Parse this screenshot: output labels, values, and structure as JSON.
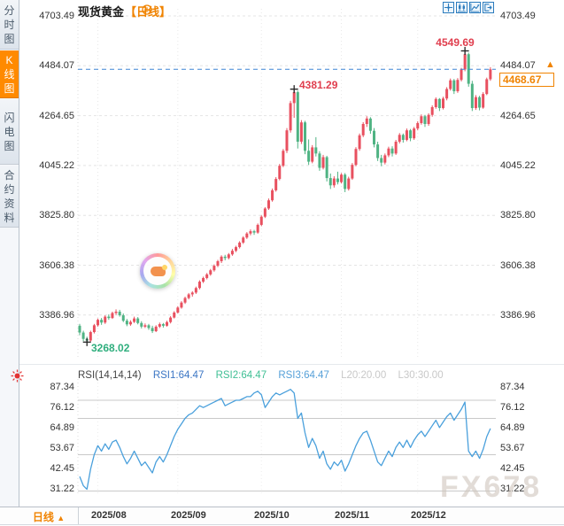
{
  "header": {
    "symbol": "现货黄金",
    "period_tag": "【日线】",
    "toolbar_icons": [
      "crosshair-icon",
      "kline-mode-icon",
      "trend-mode-icon",
      "exit-chart-icon"
    ]
  },
  "sidebar": {
    "tabs": [
      {
        "label": "分时图",
        "active": false
      },
      {
        "label": "K线图",
        "active": true
      },
      {
        "label": "闪电图",
        "active": false
      },
      {
        "label": "合约资料",
        "active": false
      }
    ]
  },
  "price_axis": {
    "labels": [
      "4703.49",
      "4484.07",
      "4264.65",
      "4045.22",
      "3825.80",
      "3606.38",
      "3386.96"
    ]
  },
  "annotations": {
    "high": "4549.69",
    "swing_high": "4381.29",
    "low": "3268.02"
  },
  "last_price": {
    "display": "4468.67",
    "marker": "▲"
  },
  "rsi_panel": {
    "title": "RSI(14,14,14)",
    "rsi1": "RSI1:64.47",
    "rsi2": "RSI2:64.47",
    "rsi3": "RSI3:64.47",
    "l20": "L20:20.00",
    "l30": "L30:30.00",
    "axis": [
      "87.34",
      "76.12",
      "64.89",
      "53.67",
      "42.45",
      "31.22"
    ]
  },
  "timeline": {
    "period": "日线",
    "arrow": "▲",
    "dates": [
      "2025/08",
      "2025/09",
      "2025/10",
      "2025/11",
      "2025/12"
    ]
  },
  "watermark": "FX678",
  "colors": {
    "up": "#e8505f",
    "down": "#4fb383",
    "accent_orange": "#f08300",
    "annotation_red": "#e03e4e",
    "annotation_green": "#2fae7d",
    "last_price_line": "#3f86d6",
    "rsi_line": "#4aa0dc",
    "grid": "#e4e4e4",
    "rsi_grid": "#c9c9c9",
    "icon_blue": "#2176bd",
    "axis_text": "#333333"
  },
  "chart_data": {
    "type": "candlestick",
    "title": "现货黄金 日线",
    "y_axis": [
      4703.49,
      4484.07,
      4264.65,
      4045.22,
      3825.8,
      3606.38,
      3386.96
    ],
    "y_range": [
      3386.96,
      4703.49
    ],
    "last_price": 4468.67,
    "x_ticks": [
      {
        "label": "2025/08",
        "index": 5
      },
      {
        "label": "2025/09",
        "index": 27
      },
      {
        "label": "2025/10",
        "index": 50
      },
      {
        "label": "2025/11",
        "index": 72
      },
      {
        "label": "2025/12",
        "index": 93
      }
    ],
    "markers": {
      "high": {
        "index": 106,
        "price": 4549.69
      },
      "swing_high": {
        "index": 59,
        "price": 4381.29
      },
      "low": {
        "index": 2,
        "price": 3268.02
      }
    },
    "candles": [
      [
        3340,
        3348,
        3298,
        3310
      ],
      [
        3310,
        3318,
        3272,
        3282
      ],
      [
        3282,
        3292,
        3268.02,
        3275
      ],
      [
        3275,
        3318,
        3270,
        3312
      ],
      [
        3312,
        3348,
        3306,
        3342
      ],
      [
        3342,
        3372,
        3336,
        3366
      ],
      [
        3366,
        3374,
        3344,
        3354
      ],
      [
        3354,
        3386,
        3348,
        3380
      ],
      [
        3380,
        3390,
        3366,
        3374
      ],
      [
        3374,
        3402,
        3370,
        3396
      ],
      [
        3396,
        3412,
        3388,
        3402
      ],
      [
        3402,
        3410,
        3380,
        3386
      ],
      [
        3386,
        3394,
        3356,
        3362
      ],
      [
        3362,
        3370,
        3338,
        3346
      ],
      [
        3346,
        3364,
        3340,
        3357
      ],
      [
        3357,
        3380,
        3352,
        3372
      ],
      [
        3372,
        3378,
        3346,
        3352
      ],
      [
        3352,
        3360,
        3328,
        3336
      ],
      [
        3336,
        3350,
        3330,
        3342
      ],
      [
        3342,
        3348,
        3322,
        3330
      ],
      [
        3330,
        3340,
        3308,
        3316
      ],
      [
        3316,
        3342,
        3312,
        3336
      ],
      [
        3336,
        3354,
        3330,
        3347
      ],
      [
        3347,
        3352,
        3332,
        3340
      ],
      [
        3340,
        3362,
        3336,
        3356
      ],
      [
        3356,
        3382,
        3350,
        3376
      ],
      [
        3376,
        3404,
        3372,
        3398
      ],
      [
        3398,
        3426,
        3394,
        3420
      ],
      [
        3420,
        3448,
        3415,
        3442
      ],
      [
        3442,
        3468,
        3436,
        3462
      ],
      [
        3462,
        3484,
        3456,
        3478
      ],
      [
        3478,
        3492,
        3468,
        3486
      ],
      [
        3486,
        3512,
        3480,
        3506
      ],
      [
        3506,
        3540,
        3500,
        3534
      ],
      [
        3534,
        3556,
        3528,
        3550
      ],
      [
        3550,
        3572,
        3544,
        3566
      ],
      [
        3566,
        3590,
        3560,
        3584
      ],
      [
        3584,
        3610,
        3578,
        3604
      ],
      [
        3604,
        3630,
        3598,
        3624
      ],
      [
        3624,
        3650,
        3616,
        3644
      ],
      [
        3644,
        3652,
        3628,
        3638
      ],
      [
        3638,
        3660,
        3632,
        3654
      ],
      [
        3654,
        3678,
        3648,
        3670
      ],
      [
        3670,
        3692,
        3664,
        3686
      ],
      [
        3686,
        3712,
        3680,
        3706
      ],
      [
        3706,
        3734,
        3700,
        3728
      ],
      [
        3728,
        3752,
        3722,
        3746
      ],
      [
        3746,
        3764,
        3738,
        3756
      ],
      [
        3756,
        3762,
        3740,
        3750
      ],
      [
        3750,
        3790,
        3745,
        3784
      ],
      [
        3784,
        3826,
        3778,
        3820
      ],
      [
        3820,
        3862,
        3814,
        3856
      ],
      [
        3856,
        3900,
        3850,
        3892
      ],
      [
        3892,
        3944,
        3886,
        3936
      ],
      [
        3936,
        3994,
        3930,
        3986
      ],
      [
        3986,
        4052,
        3980,
        4044
      ],
      [
        4044,
        4118,
        4038,
        4110
      ],
      [
        4110,
        4210,
        4100,
        4200
      ],
      [
        4200,
        4330,
        4190,
        4320
      ],
      [
        4320,
        4381.29,
        4255,
        4368
      ],
      [
        4368,
        4375,
        4120,
        4150
      ],
      [
        4150,
        4245,
        4140,
        4235
      ],
      [
        4235,
        4242,
        4095,
        4110
      ],
      [
        4110,
        4160,
        4048,
        4062
      ],
      [
        4062,
        4135,
        4055,
        4125
      ],
      [
        4125,
        4170,
        4085,
        4098
      ],
      [
        4098,
        4108,
        4022,
        4035
      ],
      [
        4035,
        4092,
        4028,
        4082
      ],
      [
        4082,
        4088,
        3975,
        3990
      ],
      [
        3990,
        4010,
        3942,
        3958
      ],
      [
        3958,
        3998,
        3948,
        3988
      ],
      [
        3988,
        4018,
        3962,
        3972
      ],
      [
        3972,
        4012,
        3966,
        4005
      ],
      [
        4005,
        4012,
        3928,
        3942
      ],
      [
        3942,
        3996,
        3935,
        3988
      ],
      [
        3988,
        4056,
        3982,
        4048
      ],
      [
        4048,
        4126,
        4042,
        4118
      ],
      [
        4118,
        4186,
        4110,
        4178
      ],
      [
        4178,
        4236,
        4170,
        4228
      ],
      [
        4228,
        4262,
        4215,
        4252
      ],
      [
        4252,
        4258,
        4185,
        4198
      ],
      [
        4198,
        4210,
        4125,
        4138
      ],
      [
        4138,
        4150,
        4065,
        4078
      ],
      [
        4078,
        4092,
        4042,
        4058
      ],
      [
        4058,
        4098,
        4050,
        4090
      ],
      [
        4090,
        4128,
        4082,
        4120
      ],
      [
        4120,
        4130,
        4085,
        4098
      ],
      [
        4098,
        4158,
        4092,
        4150
      ],
      [
        4150,
        4188,
        4142,
        4180
      ],
      [
        4180,
        4186,
        4146,
        4158
      ],
      [
        4158,
        4208,
        4152,
        4200
      ],
      [
        4200,
        4206,
        4152,
        4165
      ],
      [
        4165,
        4215,
        4158,
        4208
      ],
      [
        4208,
        4240,
        4200,
        4232
      ],
      [
        4232,
        4270,
        4225,
        4262
      ],
      [
        4262,
        4268,
        4215,
        4228
      ],
      [
        4228,
        4275,
        4220,
        4268
      ],
      [
        4268,
        4310,
        4260,
        4302
      ],
      [
        4302,
        4345,
        4295,
        4338
      ],
      [
        4338,
        4342,
        4285,
        4298
      ],
      [
        4298,
        4348,
        4292,
        4340
      ],
      [
        4340,
        4390,
        4332,
        4382
      ],
      [
        4382,
        4428,
        4375,
        4420
      ],
      [
        4420,
        4426,
        4360,
        4372
      ],
      [
        4372,
        4430,
        4365,
        4422
      ],
      [
        4422,
        4475,
        4415,
        4468
      ],
      [
        4468,
        4549.69,
        4460,
        4535
      ],
      [
        4535,
        4542,
        4392,
        4405
      ],
      [
        4405,
        4418,
        4285,
        4298
      ],
      [
        4298,
        4355,
        4290,
        4346
      ],
      [
        4346,
        4352,
        4288,
        4300
      ],
      [
        4300,
        4368,
        4295,
        4360
      ],
      [
        4360,
        4432,
        4355,
        4425
      ],
      [
        4425,
        4478,
        4418,
        4468.67
      ]
    ],
    "rsi": {
      "values": [
        38,
        33,
        31,
        42,
        50,
        55,
        52,
        56,
        53,
        57,
        58,
        54,
        49,
        45,
        48,
        52,
        48,
        44,
        46,
        43,
        40,
        46,
        49,
        46,
        50,
        55,
        60,
        64,
        67,
        70,
        72,
        73,
        75,
        77,
        76,
        77,
        78,
        79,
        80,
        81,
        77,
        78,
        79,
        80,
        80,
        81,
        82,
        82,
        84,
        85,
        83,
        76,
        79,
        82,
        84,
        83,
        84,
        85,
        86,
        84,
        70,
        73,
        62,
        54,
        59,
        55,
        48,
        52,
        45,
        42,
        46,
        44,
        47,
        41,
        45,
        50,
        55,
        59,
        62,
        63,
        58,
        52,
        46,
        44,
        48,
        52,
        49,
        54,
        57,
        54,
        58,
        54,
        58,
        61,
        63,
        60,
        63,
        66,
        69,
        65,
        68,
        71,
        73,
        69,
        72,
        75,
        79,
        52,
        49,
        52,
        48,
        53,
        60,
        64.47
      ],
      "axis": [
        87.34,
        76.12,
        64.89,
        53.67,
        42.45,
        31.22
      ],
      "gridlines": [
        80,
        70,
        50,
        30
      ],
      "current": 64.47
    }
  }
}
